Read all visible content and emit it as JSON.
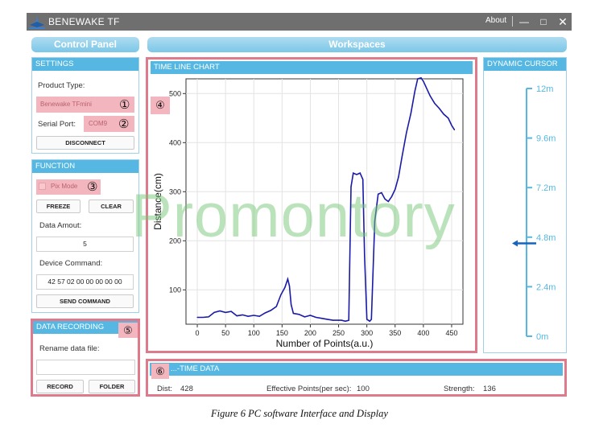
{
  "app": {
    "title": "BENEWAKE TF",
    "about": "About"
  },
  "control_panel": {
    "title": "Control Panel"
  },
  "settings": {
    "header": "SETTINGS",
    "product_type_label": "Product Type:",
    "product_type_value": "Benewake TFmini",
    "product_type_marker": "①",
    "serial_port_label": "Serial Port:",
    "serial_port_value": "COM9",
    "serial_port_marker": "②",
    "disconnect_label": "DISCONNECT"
  },
  "function": {
    "header": "FUNCTION",
    "pix_mode_label": "Pix Mode",
    "pix_mode_marker": "③",
    "freeze_label": "FREEZE",
    "clear_label": "CLEAR",
    "data_amount_label": "Data Amout:",
    "data_amount_value": "5",
    "device_command_label": "Device Command:",
    "device_command_value": "42 57 02 00 00 00 00 00",
    "send_label": "SEND COMMAND"
  },
  "recording": {
    "header": "DATA RECORDING",
    "marker": "⑤",
    "rename_label": "Rename data file:",
    "rename_value": "",
    "record_label": "RECORD",
    "folder_label": "FOLDER"
  },
  "workspaces": {
    "title": "Workspaces"
  },
  "time_line_chart": {
    "header": "TIME LINE CHART",
    "marker": "④"
  },
  "dynamic_cursor": {
    "header": "DYNAMIC CURSOR",
    "ticks": [
      "12m",
      "9.6m",
      "7.2m",
      "4.8m",
      "2.4m",
      "0m"
    ],
    "current_value_m": 4.5
  },
  "realtime": {
    "header": "...-TIME DATA",
    "marker": "⑥",
    "dist_label": "Dist:",
    "dist_value": "428",
    "eff_label": "Effective Points(per sec):",
    "eff_value": "100",
    "strength_label": "Strength:",
    "strength_value": "136"
  },
  "watermark": "Promontory",
  "caption": "Figure 6 PC software Interface and Display",
  "colors": {
    "line": "#1a1aa8",
    "accent": "#56b8e2",
    "highlight": "#df7a8c"
  },
  "chart_data": {
    "type": "line",
    "xlabel": "Number of Points(a.u.)",
    "ylabel": "Distance(cm)",
    "xlim": [
      -20,
      470
    ],
    "ylim": [
      30,
      530
    ],
    "xticks": [
      0,
      50,
      100,
      150,
      200,
      250,
      300,
      350,
      400,
      450
    ],
    "yticks": [
      100,
      200,
      300,
      400,
      500
    ],
    "grid": true,
    "series": [
      {
        "values": [
          [
            0,
            44
          ],
          [
            10,
            44
          ],
          [
            20,
            45
          ],
          [
            30,
            54
          ],
          [
            40,
            57
          ],
          [
            50,
            54
          ],
          [
            60,
            56
          ],
          [
            70,
            47
          ],
          [
            80,
            49
          ],
          [
            90,
            46
          ],
          [
            100,
            48
          ],
          [
            110,
            46
          ],
          [
            120,
            53
          ],
          [
            130,
            58
          ],
          [
            140,
            66
          ],
          [
            148,
            90
          ],
          [
            155,
            105
          ],
          [
            160,
            122
          ],
          [
            163,
            108
          ],
          [
            166,
            70
          ],
          [
            170,
            52
          ],
          [
            180,
            50
          ],
          [
            190,
            45
          ],
          [
            200,
            48
          ],
          [
            210,
            44
          ],
          [
            220,
            42
          ],
          [
            230,
            40
          ],
          [
            240,
            38
          ],
          [
            250,
            38
          ],
          [
            255,
            38
          ],
          [
            262,
            36
          ],
          [
            268,
            38
          ],
          [
            272,
            310
          ],
          [
            276,
            338
          ],
          [
            282,
            335
          ],
          [
            288,
            338
          ],
          [
            293,
            325
          ],
          [
            296,
            170
          ],
          [
            300,
            40
          ],
          [
            305,
            36
          ],
          [
            308,
            40
          ],
          [
            314,
            240
          ],
          [
            320,
            295
          ],
          [
            326,
            298
          ],
          [
            332,
            285
          ],
          [
            338,
            280
          ],
          [
            344,
            290
          ],
          [
            350,
            305
          ],
          [
            356,
            330
          ],
          [
            362,
            370
          ],
          [
            370,
            420
          ],
          [
            378,
            460
          ],
          [
            385,
            505
          ],
          [
            390,
            530
          ],
          [
            396,
            532
          ],
          [
            400,
            525
          ],
          [
            404,
            515
          ],
          [
            408,
            505
          ],
          [
            412,
            495
          ],
          [
            420,
            480
          ],
          [
            428,
            470
          ],
          [
            436,
            458
          ],
          [
            444,
            450
          ],
          [
            450,
            435
          ],
          [
            455,
            426
          ]
        ]
      }
    ]
  }
}
